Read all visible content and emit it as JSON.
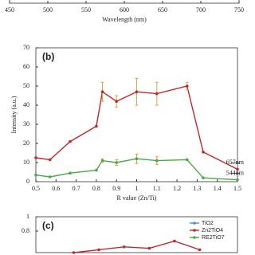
{
  "chart_data": [
    {
      "type": "line",
      "x_label": "Wavelength (nm)",
      "xlim": [
        450,
        750
      ],
      "xticks": [
        450,
        500,
        550,
        600,
        650,
        700,
        750
      ]
    },
    {
      "type": "line",
      "label": "(b)",
      "x_label": "R value (Zn/Ti)",
      "y_label": "Intensity (a.u.)",
      "xlim": [
        0.5,
        1.5
      ],
      "xticks": [
        0.5,
        0.6,
        0.7,
        0.8,
        0.9,
        1,
        1.1,
        1.2,
        1.3,
        1.4,
        1.5
      ],
      "ylim": [
        0,
        70
      ],
      "yticks": [
        0,
        10,
        20,
        30,
        40,
        50,
        60,
        70
      ],
      "x": [
        0.5,
        0.57,
        0.67,
        0.8,
        0.83,
        0.9,
        1.0,
        1.1,
        1.25,
        1.33,
        1.5
      ],
      "series": [
        {
          "name": "657nm",
          "color": "#c0282d",
          "values": [
            12.5,
            11.5,
            21,
            29,
            47,
            42,
            47,
            46,
            50,
            15.5,
            6.5
          ],
          "errors": [
            null,
            null,
            null,
            null,
            5,
            3,
            7,
            6,
            2,
            null,
            null
          ]
        },
        {
          "name": "544nm",
          "color": "#4aa84a",
          "values": [
            3.5,
            2.5,
            4.5,
            6,
            11,
            10,
            12,
            11,
            11.5,
            2,
            1
          ],
          "errors": [
            null,
            null,
            null,
            null,
            1,
            1.5,
            2.5,
            2,
            null,
            null,
            null
          ]
        }
      ]
    },
    {
      "type": "line",
      "label": "(c)",
      "ylim": [
        0.5,
        1
      ],
      "yticks": [
        0.8,
        1
      ],
      "categories": [
        null,
        null,
        null,
        null,
        null,
        null,
        null,
        null
      ],
      "legend": "upper right",
      "series": [
        {
          "name": "TiO2",
          "color": "#4a90c8",
          "values": [
            null,
            null,
            null,
            null,
            null,
            null,
            null,
            null
          ]
        },
        {
          "name": "Zn2TiO4",
          "color": "#c0282d",
          "values": [
            null,
            0.5,
            0.54,
            0.58,
            0.56,
            0.66,
            0.54,
            null
          ]
        },
        {
          "name": "RE2TiO7",
          "color": "#4aa84a",
          "values": [
            null,
            null,
            null,
            null,
            null,
            null,
            null,
            null
          ]
        }
      ]
    }
  ]
}
